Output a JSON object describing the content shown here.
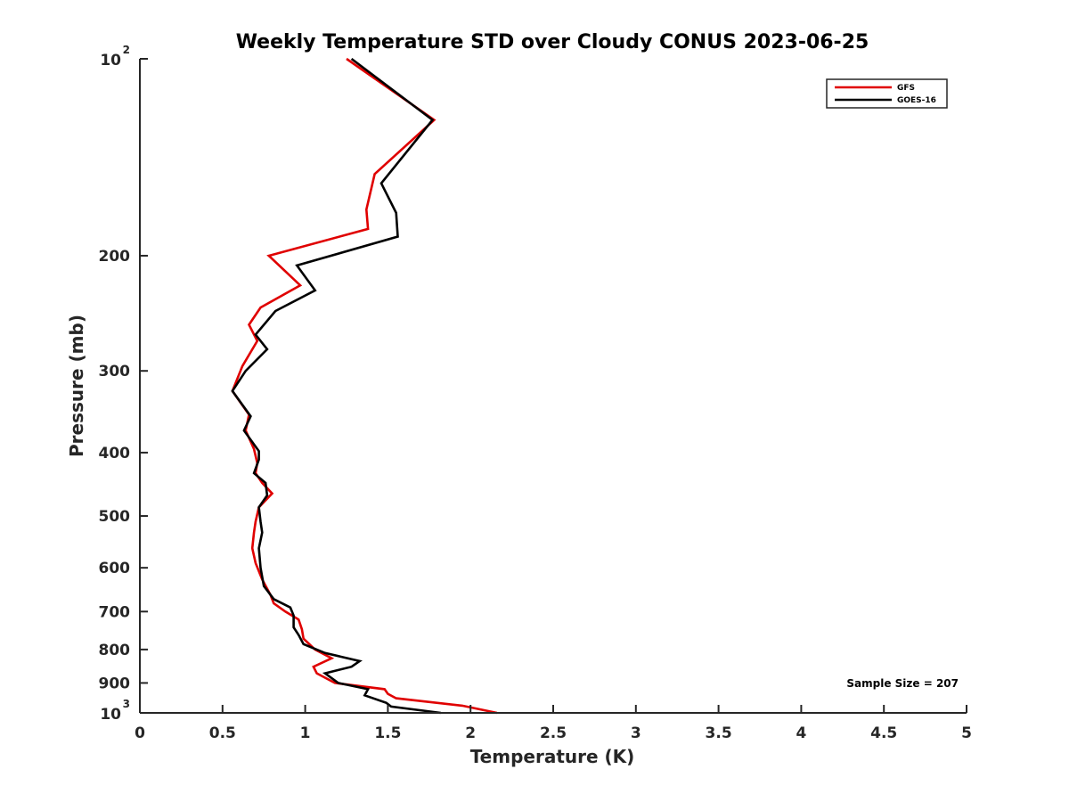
{
  "chart_data": {
    "type": "line",
    "title": "Weekly Temperature STD over Cloudy CONUS 2023-06-25",
    "xlabel": "Temperature (K)",
    "ylabel": "Pressure (mb)",
    "xlim": [
      0,
      5
    ],
    "ylim": [
      100,
      1000
    ],
    "yscale": "log",
    "yreversed": true,
    "x_ticks": [
      {
        "value": 0,
        "label": "0"
      },
      {
        "value": 0.5,
        "label": "0.5"
      },
      {
        "value": 1,
        "label": "1"
      },
      {
        "value": 1.5,
        "label": "1.5"
      },
      {
        "value": 2,
        "label": "2"
      },
      {
        "value": 2.5,
        "label": "2.5"
      },
      {
        "value": 3,
        "label": "3"
      },
      {
        "value": 3.5,
        "label": "3.5"
      },
      {
        "value": 4,
        "label": "4"
      },
      {
        "value": 4.5,
        "label": "4.5"
      },
      {
        "value": 5,
        "label": "5"
      }
    ],
    "y_ticks": [
      {
        "value": 100,
        "label": "10",
        "exp": "2"
      },
      {
        "value": 200,
        "label": "200",
        "exp": ""
      },
      {
        "value": 300,
        "label": "300",
        "exp": ""
      },
      {
        "value": 400,
        "label": "400",
        "exp": ""
      },
      {
        "value": 500,
        "label": "500",
        "exp": ""
      },
      {
        "value": 600,
        "label": "600",
        "exp": ""
      },
      {
        "value": 700,
        "label": "700",
        "exp": ""
      },
      {
        "value": 800,
        "label": "800",
        "exp": ""
      },
      {
        "value": 900,
        "label": "900",
        "exp": ""
      },
      {
        "value": 1000,
        "label": "10",
        "exp": "3"
      }
    ],
    "legend_position": "top-right",
    "annotation": "Sample Size = 207",
    "series": [
      {
        "name": "GFS",
        "color": "#e00000",
        "points": [
          [
            1.25,
            100
          ],
          [
            1.78,
            124
          ],
          [
            1.42,
            150
          ],
          [
            1.37,
            170
          ],
          [
            1.38,
            182
          ],
          [
            0.78,
            200
          ],
          [
            0.97,
            222
          ],
          [
            0.73,
            240
          ],
          [
            0.66,
            255
          ],
          [
            0.71,
            270
          ],
          [
            0.62,
            295
          ],
          [
            0.56,
            322
          ],
          [
            0.66,
            350
          ],
          [
            0.64,
            370
          ],
          [
            0.69,
            395
          ],
          [
            0.71,
            415
          ],
          [
            0.7,
            430
          ],
          [
            0.74,
            445
          ],
          [
            0.8,
            462
          ],
          [
            0.72,
            485
          ],
          [
            0.7,
            510
          ],
          [
            0.69,
            530
          ],
          [
            0.68,
            560
          ],
          [
            0.7,
            590
          ],
          [
            0.74,
            625
          ],
          [
            0.79,
            660
          ],
          [
            0.81,
            680
          ],
          [
            0.88,
            700
          ],
          [
            0.96,
            720
          ],
          [
            0.98,
            745
          ],
          [
            0.99,
            770
          ],
          [
            1.06,
            800
          ],
          [
            1.16,
            825
          ],
          [
            1.05,
            850
          ],
          [
            1.07,
            870
          ],
          [
            1.18,
            900
          ],
          [
            1.48,
            920
          ],
          [
            1.5,
            935
          ],
          [
            1.55,
            950
          ],
          [
            1.95,
            975
          ],
          [
            2.16,
            1000
          ]
        ]
      },
      {
        "name": "GOES-16",
        "color": "#000000",
        "points": [
          [
            1.28,
            100
          ],
          [
            1.77,
            124
          ],
          [
            1.46,
            155
          ],
          [
            1.55,
            172
          ],
          [
            1.56,
            187
          ],
          [
            0.95,
            207
          ],
          [
            1.06,
            226
          ],
          [
            0.82,
            243
          ],
          [
            0.7,
            264
          ],
          [
            0.77,
            278
          ],
          [
            0.64,
            300
          ],
          [
            0.56,
            322
          ],
          [
            0.67,
            352
          ],
          [
            0.63,
            370
          ],
          [
            0.72,
            398
          ],
          [
            0.72,
            410
          ],
          [
            0.69,
            430
          ],
          [
            0.76,
            445
          ],
          [
            0.77,
            465
          ],
          [
            0.72,
            485
          ],
          [
            0.73,
            510
          ],
          [
            0.74,
            530
          ],
          [
            0.72,
            560
          ],
          [
            0.73,
            600
          ],
          [
            0.75,
            640
          ],
          [
            0.81,
            670
          ],
          [
            0.91,
            690
          ],
          [
            0.93,
            710
          ],
          [
            0.93,
            740
          ],
          [
            0.96,
            760
          ],
          [
            0.99,
            785
          ],
          [
            1.12,
            810
          ],
          [
            1.33,
            833
          ],
          [
            1.28,
            850
          ],
          [
            1.12,
            870
          ],
          [
            1.2,
            900
          ],
          [
            1.38,
            920
          ],
          [
            1.36,
            940
          ],
          [
            1.49,
            965
          ],
          [
            1.52,
            978
          ],
          [
            1.82,
            1000
          ]
        ]
      }
    ]
  }
}
